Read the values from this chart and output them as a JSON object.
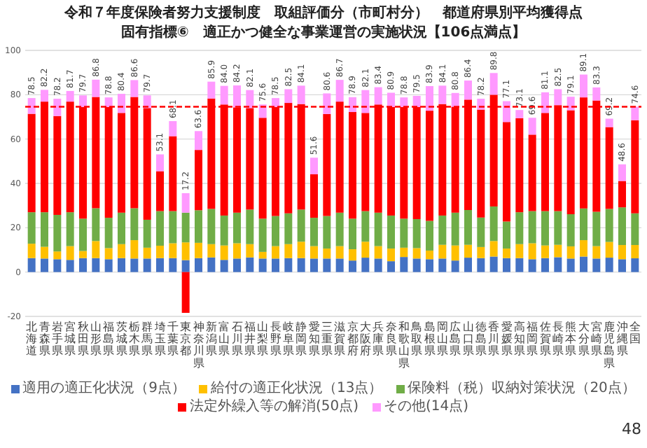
{
  "chart_data": {
    "type": "bar",
    "stacked": true,
    "title": "令和７年度保険者努力支援制度　取組評価分（市町村分）　都道府県別平均獲得点",
    "subtitle": "固有指標⑥　適正かつ健全な事業運営の実施状況【106点満点】",
    "categories": [
      "北海道",
      "青森県",
      "岩手県",
      "宮城県",
      "秋田県",
      "山形県",
      "福島県",
      "茨城県",
      "栃木県",
      "群馬県",
      "埼玉県",
      "千葉県",
      "東京都",
      "神奈川県",
      "新潟県",
      "富山県",
      "石川県",
      "福井県",
      "山梨県",
      "長野県",
      "岐阜県",
      "静岡県",
      "愛知県",
      "三重県",
      "滋賀県",
      "京都府",
      "大阪府",
      "兵庫県",
      "奈良県",
      "和歌山県",
      "鳥取県",
      "島根県",
      "岡山県",
      "広島県",
      "山口県",
      "徳島県",
      "香川県",
      "愛媛県",
      "高知県",
      "福岡県",
      "佐賀県",
      "長崎県",
      "熊本県",
      "大分県",
      "宮崎県",
      "鹿児島県",
      "沖縄県",
      "全国"
    ],
    "series": [
      {
        "name": "適用の適正化状況（9点）",
        "color": "#4472c4",
        "values": [
          6.3,
          6.1,
          5.8,
          5.5,
          6.3,
          6.3,
          5.8,
          6.3,
          6.1,
          6.1,
          6.3,
          6.3,
          5.4,
          6.3,
          6.6,
          5.5,
          6.1,
          6.6,
          6.1,
          6.1,
          6.3,
          6.3,
          6.1,
          6.1,
          6.1,
          5.2,
          6.5,
          6.1,
          4.9,
          6.8,
          6.1,
          5.8,
          6.1,
          5.2,
          6.5,
          6.3,
          7.0,
          6.3,
          6.3,
          5.8,
          6.3,
          6.7,
          6.1,
          7.0,
          6.1,
          6.5,
          5.8,
          6.2
        ]
      },
      {
        "name": "給付の適正化状況（13点）",
        "color": "#ffc000",
        "values": [
          6.5,
          5.3,
          3.5,
          6.2,
          3.2,
          7.7,
          5.0,
          6.3,
          8.3,
          4.9,
          5.6,
          6.7,
          8.0,
          6.9,
          6.0,
          6.5,
          6.9,
          6.0,
          3.0,
          5.6,
          6.3,
          7.4,
          5.6,
          4.5,
          5.6,
          5.1,
          7.2,
          5.6,
          5.7,
          4.2,
          4.7,
          3.9,
          6.2,
          6.8,
          5.8,
          5.0,
          7.0,
          4.3,
          6.3,
          7.2,
          5.7,
          5.6,
          5.5,
          7.4,
          5.6,
          7.1,
          6.4,
          6.0
        ]
      },
      {
        "name": "保険料（税）収納対策状況（20点）",
        "color": "#70ad47",
        "values": [
          14.2,
          15.6,
          16.5,
          15.3,
          14.6,
          14.8,
          13.7,
          14.2,
          14.4,
          12.6,
          15.6,
          14.5,
          13.4,
          14.7,
          15.9,
          13.5,
          13.8,
          15.6,
          15.0,
          13.6,
          13.9,
          14.5,
          12.8,
          14.7,
          15.1,
          13.8,
          13.8,
          15.1,
          14.9,
          13.1,
          13.1,
          13.4,
          13.2,
          14.8,
          15.7,
          13.3,
          15.6,
          12.2,
          14.4,
          14.5,
          15.5,
          15.2,
          14.5,
          14.3,
          15.5,
          14.9,
          17.0,
          14.3
        ]
      },
      {
        "name": "法定外繰入等の解消(50点)",
        "color": "#ff0000",
        "values": [
          44.4,
          49.9,
          44.6,
          49.9,
          50.4,
          50.2,
          50.0,
          45.0,
          50.2,
          50.4,
          18.0,
          33.8,
          -18.4,
          27.2,
          49.8,
          50.1,
          47.5,
          45.8,
          45.5,
          49.2,
          49.8,
          47.6,
          19.6,
          46.0,
          50.1,
          48.1,
          44.3,
          48.8,
          49.0,
          50.4,
          50.6,
          49.7,
          50.3,
          47.8,
          49.8,
          48.7,
          50.4,
          44.9,
          42.4,
          34.5,
          44.3,
          47.8,
          46.9,
          50.1,
          50.2,
          36.9,
          11.9,
          42.0
        ]
      },
      {
        "name": "その他(14点)",
        "color": "#ff99ff",
        "values": [
          7.1,
          5.3,
          7.8,
          4.8,
          5.2,
          7.8,
          4.3,
          8.6,
          7.6,
          5.7,
          7.6,
          6.8,
          8.8,
          8.5,
          7.6,
          8.4,
          9.9,
          8.1,
          6.0,
          4.0,
          6.2,
          8.3,
          7.5,
          9.3,
          9.8,
          6.7,
          10.3,
          7.8,
          6.4,
          4.3,
          5.0,
          11.1,
          8.3,
          6.2,
          8.6,
          4.9,
          9.8,
          9.4,
          3.7,
          7.6,
          9.3,
          7.2,
          6.1,
          10.3,
          5.9,
          3.8,
          7.5,
          6.1
        ]
      }
    ],
    "totals": [
      "78.5",
      "82.2",
      "78.2",
      "81.7",
      "79.7",
      "86.8",
      "78.8",
      "80.4",
      "86.6",
      "79.7",
      "53.1",
      "68.1",
      "17.2",
      "63.6",
      "85.9",
      "84.0",
      "84.2",
      "82.1",
      "75.6",
      "78.5",
      "82.5",
      "84.1",
      "51.6",
      "80.6",
      "86.7",
      "78.9",
      "82.1",
      "83.4",
      "80.9",
      "78.8",
      "79.5",
      "83.9",
      "84.1",
      "80.8",
      "86.4",
      "78.2",
      "89.8",
      "77.1",
      "73.1",
      "69.6",
      "81.1",
      "82.5",
      "79.1",
      "89.1",
      "83.3",
      "69.2",
      "48.6",
      "74.6"
    ],
    "ylim": [
      -20,
      100
    ],
    "yticks": [
      -20,
      0,
      20,
      40,
      60,
      80,
      100
    ],
    "grid": "y",
    "legend": "bottom",
    "ref_lines": [
      {
        "axis": "y",
        "value": 74.6,
        "color": "#ff0000",
        "line_style": "dashed"
      }
    ],
    "annotations": [
      "48"
    ]
  }
}
